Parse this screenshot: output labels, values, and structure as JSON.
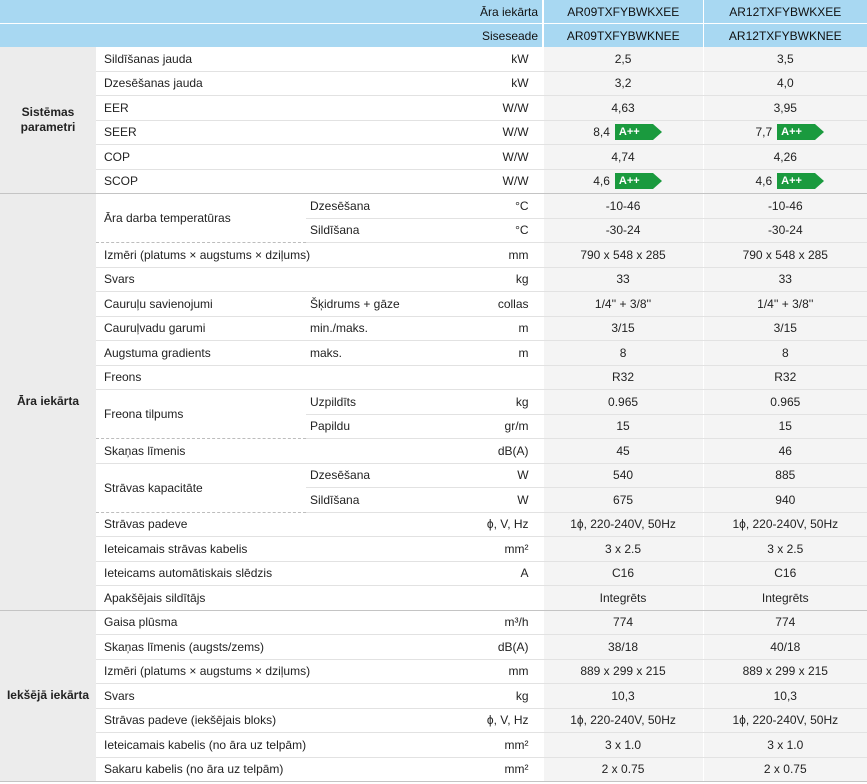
{
  "header": {
    "outdoor_label": "Āra iekārta",
    "indoor_label": "Siseseade",
    "outdoor_models": [
      "AR09TXFYBWKXEE",
      "AR12TXFYBWKXEE"
    ],
    "indoor_models": [
      "AR09TXFYBWKNEE",
      "AR12TXFYBWKNEE"
    ]
  },
  "sections": {
    "system": "Sistēmas parametri",
    "outdoor": "Āra iekārta",
    "indoor": "Iekšējā iekārta"
  },
  "badge_color": "#1a9a3e",
  "rows": [
    {
      "param": "Sildīšanas jauda",
      "sub": "",
      "unit": "kW",
      "v1": "2,5",
      "v2": "3,5"
    },
    {
      "param": "Dzesēšanas jauda",
      "sub": "",
      "unit": "kW",
      "v1": "3,2",
      "v2": "4,0"
    },
    {
      "param": "EER",
      "sub": "",
      "unit": "W/W",
      "v1": "4,63",
      "v2": "3,95"
    },
    {
      "param": "SEER",
      "sub": "",
      "unit": "W/W",
      "v1": "8,4",
      "v2": "7,7",
      "b1": "A++",
      "b2": "A++"
    },
    {
      "param": "COP",
      "sub": "",
      "unit": "W/W",
      "v1": "4,74",
      "v2": "4,26"
    },
    {
      "param": "SCOP",
      "sub": "",
      "unit": "W/W",
      "v1": "4,6",
      "v2": "4,6",
      "b1": "A++",
      "b2": "A++"
    },
    {
      "param": "Āra darba temperatūras",
      "sub": "Dzesēšana",
      "unit": "°C",
      "v1": "-10-46",
      "v2": "-10-46"
    },
    {
      "param": "",
      "sub": "Sildīšana",
      "unit": "°C",
      "v1": "-30-24",
      "v2": "-30-24"
    },
    {
      "param": "Izmēri (platums × augstums × dziļums)",
      "sub": "",
      "unit": "mm",
      "v1": "790 x 548 x 285",
      "v2": "790 x 548 x 285"
    },
    {
      "param": "Svars",
      "sub": "",
      "unit": "kg",
      "v1": "33",
      "v2": "33"
    },
    {
      "param": "Cauruļu savienojumi",
      "sub": "Šķidrums + gāze",
      "unit": "collas",
      "v1": "1/4'' + 3/8''",
      "v2": "1/4'' + 3/8''"
    },
    {
      "param": "Cauruļvadu garumi",
      "sub": "min./maks.",
      "unit": "m",
      "v1": "3/15",
      "v2": "3/15"
    },
    {
      "param": "Augstuma gradients",
      "sub": "maks.",
      "unit": "m",
      "v1": "8",
      "v2": "8"
    },
    {
      "param": "Freons",
      "sub": "",
      "unit": "",
      "v1": "R32",
      "v2": "R32"
    },
    {
      "param": "Freona tilpums",
      "sub": "Uzpildīts",
      "unit": "kg",
      "v1": "0.965",
      "v2": "0.965"
    },
    {
      "param": "",
      "sub": "Papildu",
      "unit": "gr/m",
      "v1": "15",
      "v2": "15"
    },
    {
      "param": "Skaņas līmenis",
      "sub": "",
      "unit": "dB(A)",
      "v1": "45",
      "v2": "46"
    },
    {
      "param": "Strāvas kapacitāte",
      "sub": "Dzesēšana",
      "unit": "W",
      "v1": "540",
      "v2": "885"
    },
    {
      "param": "",
      "sub": "Sildīšana",
      "unit": "W",
      "v1": "675",
      "v2": "940"
    },
    {
      "param": "Strāvas padeve",
      "sub": "",
      "unit": "ϕ, V, Hz",
      "v1": "1ϕ, 220-240V, 50Hz",
      "v2": "1ϕ, 220-240V, 50Hz"
    },
    {
      "param": "Ieteicamais strāvas kabelis",
      "sub": "",
      "unit": "mm²",
      "v1": "3 x 2.5",
      "v2": "3 x 2.5"
    },
    {
      "param": "Ieteicams automātiskais slēdzis",
      "sub": "",
      "unit": "A",
      "v1": "C16",
      "v2": "C16"
    },
    {
      "param": "Apakšējais sildītājs",
      "sub": "",
      "unit": "",
      "v1": "Integrēts",
      "v2": "Integrēts"
    },
    {
      "param": "Gaisa plūsma",
      "sub": "",
      "unit": "m³/h",
      "v1": "774",
      "v2": "774"
    },
    {
      "param": "Skaņas līmenis (augsts/zems)",
      "sub": "",
      "unit": "dB(A)",
      "v1": "38/18",
      "v2": "40/18"
    },
    {
      "param": "Izmēri (platums × augstums × dziļums)",
      "sub": "",
      "unit": "mm",
      "v1": "889 x 299 x 215",
      "v2": "889 x 299 x 215"
    },
    {
      "param": "Svars",
      "sub": "",
      "unit": "kg",
      "v1": "10,3",
      "v2": "10,3"
    },
    {
      "param": "Strāvas padeve (iekšējais bloks)",
      "sub": "",
      "unit": "ϕ, V, Hz",
      "v1": "1ϕ, 220-240V, 50Hz",
      "v2": "1ϕ, 220-240V, 50Hz"
    },
    {
      "param": "Ieteicamais kabelis (no āra uz telpām)",
      "sub": "",
      "unit": "mm²",
      "v1": "3 x 1.0",
      "v2": "3 x 1.0"
    },
    {
      "param": "Sakaru kabelis (no āra uz telpām)",
      "sub": "",
      "unit": "mm²",
      "v1": "2 x 0.75",
      "v2": "2 x 0.75"
    }
  ]
}
